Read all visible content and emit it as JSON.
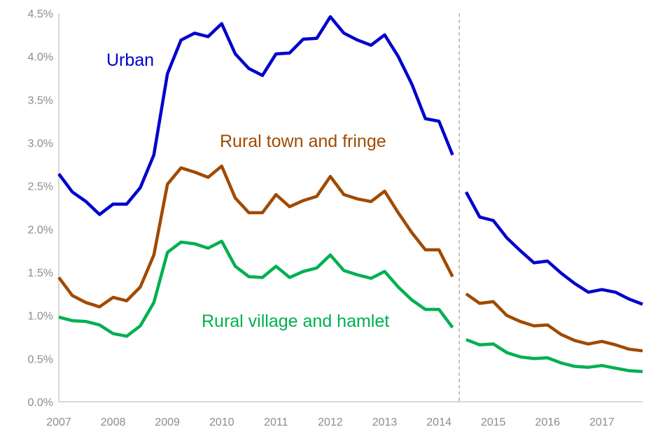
{
  "chart_data": {
    "type": "line",
    "title": "",
    "xlabel": "",
    "ylabel": "",
    "y_tick_labels": [
      "0.0%",
      "0.5%",
      "1.0%",
      "1.5%",
      "2.0%",
      "2.5%",
      "3.0%",
      "3.5%",
      "4.0%",
      "4.5%"
    ],
    "y_ticks": [
      0,
      0.5,
      1.0,
      1.5,
      2.0,
      2.5,
      3.0,
      3.5,
      4.0,
      4.5
    ],
    "ylim": [
      0,
      4.5
    ],
    "xlim": [
      2007.0,
      2017.75
    ],
    "x_tick_labels": [
      "2007",
      "2008",
      "2009",
      "2010",
      "2011",
      "2012",
      "2013",
      "2014",
      "2015",
      "2016",
      "2017"
    ],
    "x_ticks": [
      2007,
      2008,
      2009,
      2010,
      2011,
      2012,
      2013,
      2014,
      2015,
      2016,
      2017
    ],
    "break_at": 2014.375,
    "grid": false,
    "legend": "inline labels",
    "series": [
      {
        "name": "Urban",
        "color": "#0000cc",
        "segments": [
          {
            "x": [
              2007.0,
              2007.25,
              2007.5,
              2007.75,
              2008.0,
              2008.25,
              2008.5,
              2008.75,
              2009.0,
              2009.25,
              2009.5,
              2009.75,
              2010.0,
              2010.25,
              2010.5,
              2010.75,
              2011.0,
              2011.25,
              2011.5,
              2011.75,
              2012.0,
              2012.25,
              2012.5,
              2012.75,
              2013.0,
              2013.25,
              2013.5,
              2013.75,
              2014.0,
              2014.25
            ],
            "y": [
              2.64,
              2.43,
              2.32,
              2.17,
              2.29,
              2.29,
              2.48,
              2.86,
              3.8,
              4.19,
              4.27,
              4.23,
              4.38,
              4.03,
              3.86,
              3.78,
              4.03,
              4.04,
              4.2,
              4.21,
              4.46,
              4.27,
              4.19,
              4.13,
              4.25,
              4.0,
              3.68,
              3.28,
              3.25,
              2.86
            ]
          },
          {
            "x": [
              2014.5,
              2014.75,
              2015.0,
              2015.25,
              2015.5,
              2015.75,
              2016.0,
              2016.25,
              2016.5,
              2016.75,
              2017.0,
              2017.25,
              2017.5,
              2017.75
            ],
            "y": [
              2.43,
              2.14,
              2.1,
              1.9,
              1.75,
              1.61,
              1.63,
              1.49,
              1.37,
              1.27,
              1.3,
              1.27,
              1.19,
              1.13
            ]
          }
        ]
      },
      {
        "name": "Rural town and fringe",
        "color": "#a04a00",
        "segments": [
          {
            "x": [
              2007.0,
              2007.25,
              2007.5,
              2007.75,
              2008.0,
              2008.25,
              2008.5,
              2008.75,
              2009.0,
              2009.25,
              2009.5,
              2009.75,
              2010.0,
              2010.25,
              2010.5,
              2010.75,
              2011.0,
              2011.25,
              2011.5,
              2011.75,
              2012.0,
              2012.25,
              2012.5,
              2012.75,
              2013.0,
              2013.25,
              2013.5,
              2013.75,
              2014.0,
              2014.25
            ],
            "y": [
              1.44,
              1.23,
              1.15,
              1.1,
              1.21,
              1.17,
              1.33,
              1.7,
              2.52,
              2.71,
              2.66,
              2.6,
              2.73,
              2.36,
              2.19,
              2.19,
              2.4,
              2.26,
              2.33,
              2.38,
              2.61,
              2.4,
              2.35,
              2.32,
              2.44,
              2.19,
              1.96,
              1.76,
              1.76,
              1.45
            ]
          },
          {
            "x": [
              2014.5,
              2014.75,
              2015.0,
              2015.25,
              2015.5,
              2015.75,
              2016.0,
              2016.25,
              2016.5,
              2016.75,
              2017.0,
              2017.25,
              2017.5,
              2017.75
            ],
            "y": [
              1.25,
              1.14,
              1.16,
              1.0,
              0.93,
              0.88,
              0.89,
              0.78,
              0.71,
              0.67,
              0.7,
              0.66,
              0.61,
              0.59
            ]
          }
        ]
      },
      {
        "name": "Rural village and hamlet",
        "color": "#00b050",
        "segments": [
          {
            "x": [
              2007.0,
              2007.25,
              2007.5,
              2007.75,
              2008.0,
              2008.25,
              2008.5,
              2008.75,
              2009.0,
              2009.25,
              2009.5,
              2009.75,
              2010.0,
              2010.25,
              2010.5,
              2010.75,
              2011.0,
              2011.25,
              2011.5,
              2011.75,
              2012.0,
              2012.25,
              2012.5,
              2012.75,
              2013.0,
              2013.25,
              2013.5,
              2013.75,
              2014.0,
              2014.25
            ],
            "y": [
              0.98,
              0.94,
              0.93,
              0.89,
              0.79,
              0.76,
              0.88,
              1.15,
              1.73,
              1.85,
              1.83,
              1.78,
              1.86,
              1.57,
              1.45,
              1.44,
              1.57,
              1.44,
              1.51,
              1.55,
              1.7,
              1.52,
              1.47,
              1.43,
              1.51,
              1.33,
              1.18,
              1.07,
              1.07,
              0.86
            ]
          },
          {
            "x": [
              2014.5,
              2014.75,
              2015.0,
              2015.25,
              2015.5,
              2015.75,
              2016.0,
              2016.25,
              2016.5,
              2016.75,
              2017.0,
              2017.25,
              2017.5,
              2017.75
            ],
            "y": [
              0.72,
              0.66,
              0.67,
              0.57,
              0.52,
              0.5,
              0.51,
              0.45,
              0.41,
              0.4,
              0.42,
              0.39,
              0.36,
              0.35
            ]
          }
        ]
      }
    ]
  }
}
